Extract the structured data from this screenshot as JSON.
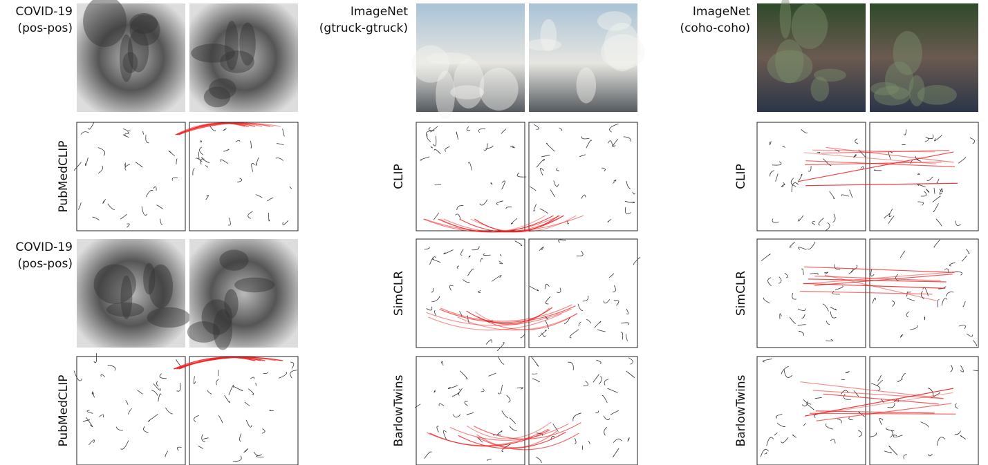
{
  "columns": [
    {
      "rows": [
        {
          "title": [
            "COVID-19",
            "(pos-pos)"
          ]
        },
        {
          "label": "PubMedCLIP"
        },
        {
          "title": [
            "COVID-19",
            "(pos-pos)"
          ]
        },
        {
          "label": "PubMedCLIP"
        }
      ]
    },
    {
      "rows": [
        {
          "title": [
            "ImageNet",
            "(gtruck-gtruck)"
          ]
        },
        {
          "label": "CLIP"
        },
        {
          "label": "SimCLR"
        },
        {
          "label": "BarlowTwins"
        }
      ]
    },
    {
      "rows": [
        {
          "title": [
            "ImageNet",
            "(coho-coho)"
          ]
        },
        {
          "label": "CLIP"
        },
        {
          "label": "SimCLR"
        },
        {
          "label": "BarlowTwins"
        }
      ]
    }
  ]
}
